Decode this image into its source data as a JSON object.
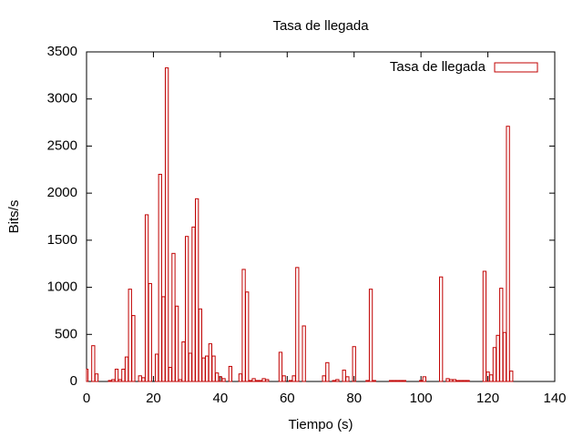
{
  "chart_data": {
    "type": "bar",
    "title": "Tasa de llegada",
    "x_label": "Tiempo (s)",
    "y_label": "Bits/s",
    "series": [
      {
        "name": "Tasa de llegada",
        "color": "#c00000",
        "x": [
          0,
          1,
          2,
          3,
          4,
          5,
          6,
          7,
          8,
          9,
          10,
          11,
          12,
          13,
          14,
          15,
          16,
          17,
          18,
          19,
          20,
          21,
          22,
          23,
          24,
          25,
          26,
          27,
          28,
          29,
          30,
          31,
          32,
          33,
          34,
          35,
          36,
          37,
          38,
          39,
          40,
          41,
          42,
          43,
          44,
          45,
          46,
          47,
          48,
          49,
          50,
          51,
          52,
          53,
          54,
          55,
          56,
          57,
          58,
          59,
          60,
          61,
          62,
          63,
          64,
          65,
          66,
          67,
          68,
          69,
          70,
          71,
          72,
          73,
          74,
          75,
          76,
          77,
          78,
          79,
          80,
          81,
          82,
          83,
          84,
          85,
          86,
          87,
          88,
          89,
          90,
          91,
          92,
          93,
          94,
          95,
          96,
          97,
          98,
          99,
          100,
          101,
          102,
          103,
          104,
          105,
          106,
          107,
          108,
          109,
          110,
          111,
          112,
          113,
          114,
          115,
          116,
          117,
          118,
          119,
          120,
          121,
          122,
          123,
          124,
          125,
          126,
          127
        ],
        "values": [
          130,
          0,
          380,
          80,
          0,
          0,
          0,
          10,
          20,
          130,
          20,
          130,
          260,
          980,
          700,
          0,
          60,
          40,
          1770,
          1040,
          0,
          290,
          2200,
          900,
          3330,
          150,
          1360,
          800,
          20,
          420,
          1540,
          300,
          1640,
          1940,
          770,
          250,
          270,
          400,
          270,
          90,
          50,
          30,
          0,
          160,
          0,
          0,
          80,
          1190,
          950,
          10,
          30,
          10,
          10,
          30,
          20,
          0,
          0,
          0,
          310,
          60,
          0,
          10,
          60,
          1210,
          0,
          590,
          0,
          0,
          0,
          0,
          0,
          60,
          200,
          0,
          10,
          20,
          0,
          120,
          50,
          0,
          370,
          0,
          0,
          0,
          10,
          980,
          10,
          0,
          0,
          0,
          0,
          10,
          10,
          10,
          10,
          10,
          0,
          0,
          0,
          0,
          10,
          50,
          0,
          0,
          0,
          0,
          1110,
          0,
          30,
          20,
          20,
          10,
          10,
          10,
          10,
          0,
          0,
          0,
          0,
          1170,
          100,
          70,
          360,
          490,
          990,
          520,
          2710,
          110
        ]
      }
    ],
    "xlim": [
      0,
      140
    ],
    "xticks": [
      0,
      20,
      40,
      60,
      80,
      100,
      120,
      140
    ],
    "ylim": [
      0,
      3500
    ],
    "yticks": [
      0,
      500,
      1000,
      1500,
      2000,
      2500,
      3000,
      3500
    ],
    "legend": "top-right"
  }
}
